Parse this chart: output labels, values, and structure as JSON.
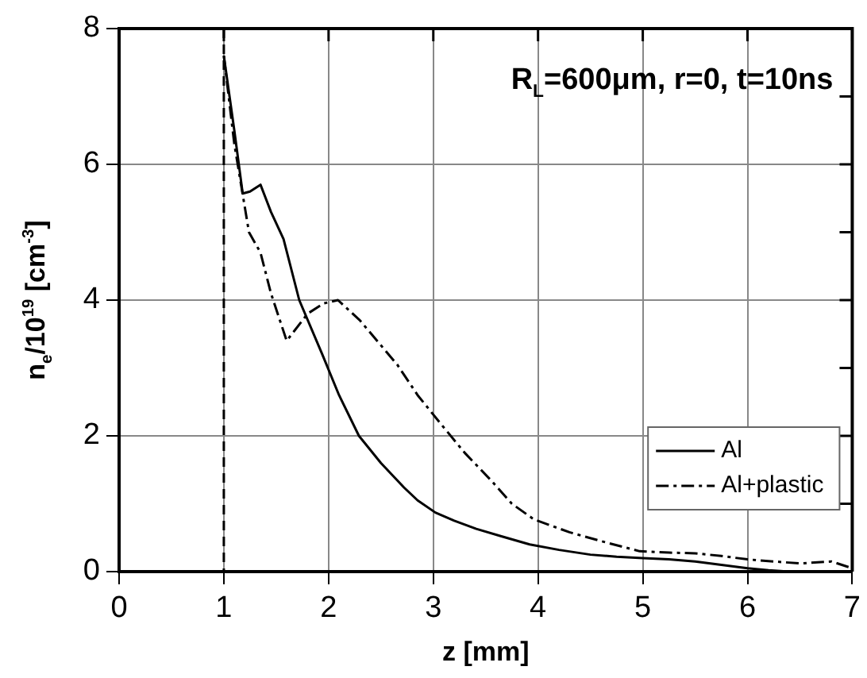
{
  "chart_data": {
    "type": "line",
    "title": "R$_{L}$=600μm, r=0, t=10ns",
    "xlabel": "z [mm]",
    "ylabel": "n$_{e}$/10$^{19}$ [cm$^{-3}$]",
    "series": [
      {
        "name": "Al",
        "color": "#000000",
        "line_style": "solid",
        "x": [
          1,
          1.1,
          1.18,
          1.25,
          1.35,
          1.45,
          1.57,
          1.72,
          1.94,
          2.1,
          2.29,
          2.5,
          2.72,
          2.85,
          3.02,
          3.2,
          3.41,
          3.65,
          3.92,
          4.2,
          4.5,
          4.75,
          5,
          5.25,
          5.5,
          5.75,
          6,
          6.2,
          6.4
        ],
        "values": [
          7.6,
          6.5,
          5.57,
          5.6,
          5.7,
          5.3,
          4.9,
          4.0,
          3.2,
          2.6,
          2.0,
          1.6,
          1.24,
          1.05,
          0.87,
          0.75,
          0.63,
          0.52,
          0.4,
          0.32,
          0.25,
          0.22,
          0.2,
          0.18,
          0.15,
          0.1,
          0.05,
          0.02,
          0
        ]
      },
      {
        "name": "Al+plastic",
        "color": "#000000",
        "line_style": "dashdot",
        "x": [
          1,
          1.1,
          1.24,
          1.35,
          1.45,
          1.6,
          1.8,
          1.95,
          2.09,
          2.3,
          2.66,
          2.85,
          3.07,
          3.3,
          3.56,
          3.75,
          3.96,
          4.3,
          4.6,
          4.97,
          5.25,
          5.5,
          5.75,
          6,
          6.25,
          6.5,
          6.8,
          7
        ],
        "values": [
          7.6,
          6.3,
          5.0,
          4.7,
          4.1,
          3.4,
          3.8,
          3.95,
          4.0,
          3.7,
          3.04,
          2.6,
          2.18,
          1.75,
          1.33,
          1.0,
          0.77,
          0.58,
          0.45,
          0.3,
          0.28,
          0.27,
          0.23,
          0.18,
          0.15,
          0.12,
          0.15,
          0.05
        ]
      }
    ],
    "xlim": [
      0,
      7
    ],
    "xticks": [
      0,
      1,
      2,
      3,
      4,
      5,
      6,
      7
    ],
    "ylim": [
      0,
      8
    ],
    "yticks": [
      0,
      {
        "value": 1,
        "label": null
      },
      2,
      {
        "value": 3,
        "label": null
      },
      4,
      {
        "value": 5,
        "label": null
      },
      6,
      {
        "value": 7,
        "label": null
      },
      8
    ],
    "ref_lines": [
      {
        "axis": "x",
        "value": 1,
        "line_style": "dashed"
      }
    ],
    "grid": true,
    "legend": "bottom right",
    "marker": "none"
  }
}
